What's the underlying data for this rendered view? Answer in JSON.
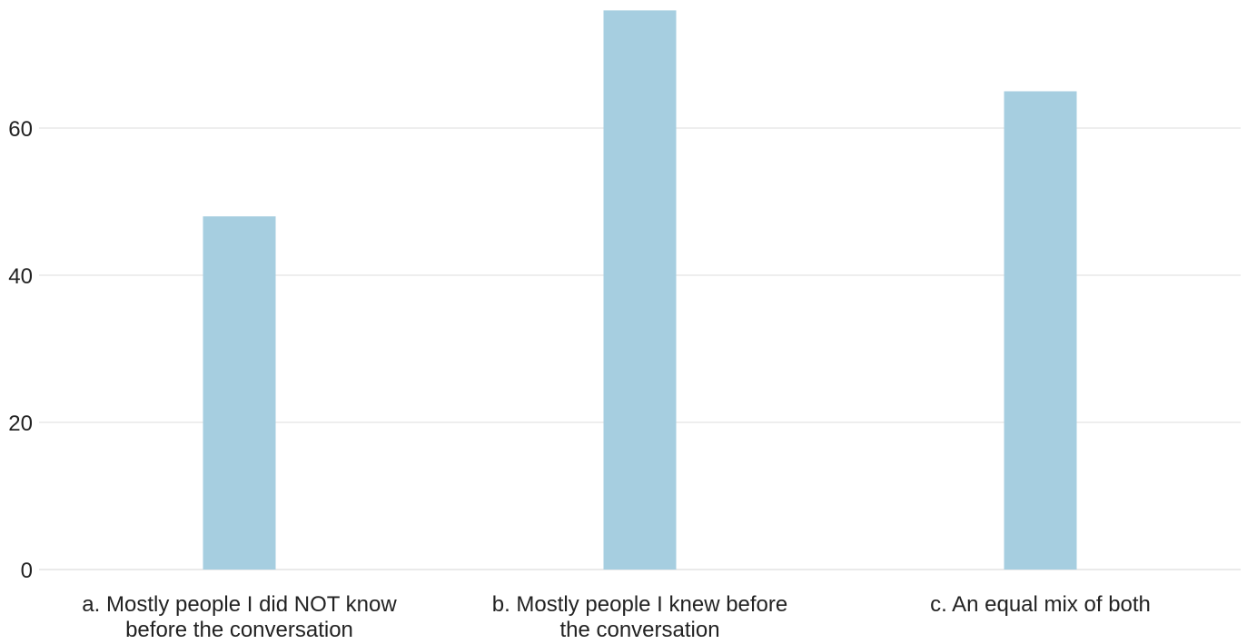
{
  "chart_data": {
    "type": "bar",
    "categories": [
      [
        "a. Mostly people I did NOT know",
        "before the conversation"
      ],
      [
        "b. Mostly people I knew before",
        "the conversation"
      ],
      [
        "c. An equal mix of both"
      ]
    ],
    "values": [
      48,
      76,
      65
    ],
    "yticks": [
      0,
      20,
      40,
      60
    ],
    "ylim": [
      0,
      77
    ],
    "title": "",
    "xlabel": "",
    "ylabel": "",
    "grid": true,
    "bar_color": "#a6cee0",
    "grid_color": "#e3e3e3"
  }
}
